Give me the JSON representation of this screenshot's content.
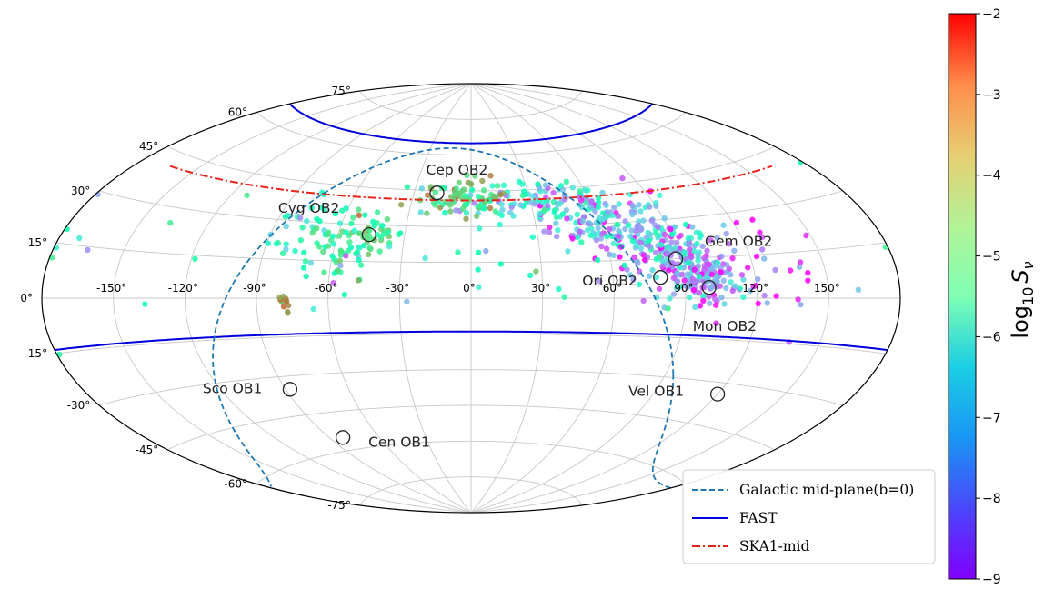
{
  "chart_data": {
    "type": "scatter",
    "projection": "aitoff",
    "xlabel": "",
    "ylabel": "",
    "lon_ticks": [
      "-150°",
      "-120°",
      "-90°",
      "-60°",
      "-30°",
      "0°",
      "30°",
      "60°",
      "90°",
      "120°",
      "150°"
    ],
    "lat_ticks": [
      "-75°",
      "-60°",
      "-45°",
      "-30°",
      "-15°",
      "0°",
      "15°",
      "30°",
      "45°",
      "60°",
      "75°"
    ],
    "grid": true,
    "colorbar": {
      "label_main": "log",
      "label_sub": "10",
      "label_var": "S",
      "label_varsub": "ν",
      "ticks": [
        "−2",
        "−3",
        "−4",
        "−5",
        "−6",
        "−7",
        "−8",
        "−9"
      ],
      "range": [
        -9,
        -2
      ],
      "colormap": "rainbow"
    },
    "associations": [
      {
        "name": "Cep OB2",
        "lon": -18,
        "lat": 44
      },
      {
        "name": "Cyg OB2",
        "lon": -46,
        "lat": 26
      },
      {
        "name": "Gem OB2",
        "lon": 88,
        "lat": 15
      },
      {
        "name": "Ori OB2",
        "lon": 80,
        "lat": 8
      },
      {
        "name": "Mon OB2",
        "lon": 100,
        "lat": 4
      },
      {
        "name": "Sco OB1",
        "lon": -88,
        "lat": -35
      },
      {
        "name": "Cen OB1",
        "lon": -82,
        "lat": -55
      },
      {
        "name": "Vel OB1",
        "lon": 120,
        "lat": -34
      }
    ],
    "legend": {
      "position": "lower-right",
      "entries": [
        {
          "label": "Galactic mid-plane(b=0)",
          "color": "#1f77b4",
          "style": "dashed"
        },
        {
          "label": "FAST",
          "color": "#0000dd",
          "style": "solid"
        },
        {
          "label": "SKA1-mid",
          "color": "#e8231a",
          "style": "dash-dot"
        }
      ]
    },
    "boundaries": {
      "fast_lat": [
        -14,
        65
      ],
      "ska_lat": 41
    },
    "source_clusters": [
      {
        "lon": 30,
        "lat": 40,
        "n": 110,
        "spread_lon": 22,
        "spread_lat": 5,
        "val_mean": -6.5,
        "val_sd": 1.1
      },
      {
        "lon": -5,
        "lat": 42,
        "n": 70,
        "spread_lon": 12,
        "spread_lat": 4,
        "val_mean": -4.2,
        "val_sd": 0.6
      },
      {
        "lon": 65,
        "lat": 30,
        "n": 140,
        "spread_lon": 14,
        "spread_lat": 6,
        "val_mean": -7.2,
        "val_sd": 0.9
      },
      {
        "lon": 85,
        "lat": 18,
        "n": 150,
        "spread_lon": 10,
        "spread_lat": 6,
        "val_mean": -7.3,
        "val_sd": 0.9
      },
      {
        "lon": 100,
        "lat": 6,
        "n": 110,
        "spread_lon": 9,
        "spread_lat": 5,
        "val_mean": -7.5,
        "val_sd": 0.8
      },
      {
        "lon": -45,
        "lat": 27,
        "n": 45,
        "spread_lon": 7,
        "spread_lat": 4,
        "val_mean": -4.6,
        "val_sd": 0.5
      },
      {
        "lon": -55,
        "lat": 18,
        "n": 30,
        "spread_lon": 8,
        "spread_lat": 6,
        "val_mean": -5.2,
        "val_sd": 0.7
      },
      {
        "lon": -80,
        "lat": -2,
        "n": 12,
        "spread_lon": 2,
        "spread_lat": 2,
        "val_mean": -3.3,
        "val_sd": 0.3
      },
      {
        "lon": -70,
        "lat": 25,
        "n": 40,
        "spread_lon": 12,
        "spread_lat": 8,
        "val_mean": -5.3,
        "val_sd": 0.7
      },
      {
        "lon": 115,
        "lat": 10,
        "n": 50,
        "spread_lon": 20,
        "spread_lat": 10,
        "val_mean": -8.2,
        "val_sd": 0.6
      },
      {
        "lon": 0,
        "lat": 18,
        "n": 60,
        "spread_lon": 100,
        "spread_lat": 14,
        "val_mean": -5.8,
        "val_sd": 1.2
      }
    ]
  }
}
